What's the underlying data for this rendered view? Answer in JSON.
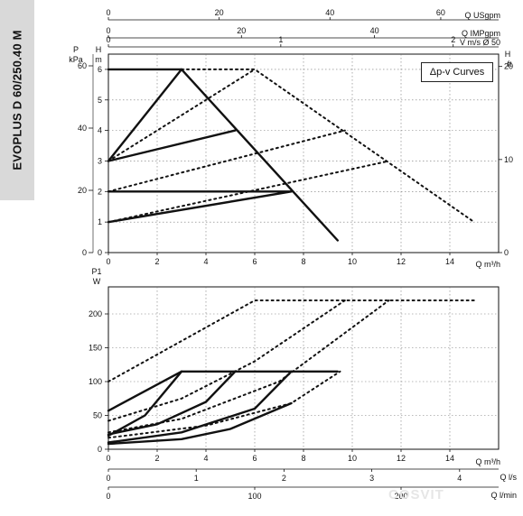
{
  "model": "EVOPLUS D 60/250.40 M",
  "legend": "Δp-v Curves",
  "watermark": "COSVIT",
  "chart_data": [
    {
      "type": "line",
      "name": "head",
      "xlim": [
        0,
        16
      ],
      "x_ticks": [
        0,
        2,
        4,
        6,
        8,
        10,
        12,
        14
      ],
      "x_unit": "Q m³/h",
      "ylim": [
        0,
        6.5
      ],
      "y_ticks": [
        0,
        1,
        2,
        3,
        4,
        5,
        6
      ],
      "y_unit": "m",
      "y_name": "H",
      "kpa_ticks": [
        0,
        20,
        40,
        60
      ],
      "kpa_unit": "kPa",
      "kpa_name": "P",
      "ft_ticks": [
        0,
        10,
        20
      ],
      "ft_unit": "ft",
      "ft_name": "H",
      "top_axes": [
        {
          "unit": "Q USgpm",
          "ticks": [
            0,
            20,
            40,
            60
          ],
          "per_m3h": 4.4029
        },
        {
          "unit": "Q IMPgpm",
          "ticks": [
            0,
            20,
            40
          ],
          "per_m3h": 3.6662
        },
        {
          "unit": "V m/s Ø 50",
          "ticks": [
            0,
            1,
            2
          ],
          "per_m3h": 0.14147
        }
      ],
      "series": [
        {
          "style": "solid",
          "points": [
            [
              0,
              6
            ],
            [
              3,
              6
            ],
            [
              9.4,
              0.4
            ]
          ]
        },
        {
          "style": "solid",
          "points": [
            [
              0,
              3
            ],
            [
              3,
              6
            ]
          ]
        },
        {
          "style": "solid",
          "points": [
            [
              0,
              3
            ],
            [
              5.2,
              4
            ]
          ]
        },
        {
          "style": "solid",
          "points": [
            [
              0,
              2
            ],
            [
              7.5,
              2
            ]
          ]
        },
        {
          "style": "solid",
          "points": [
            [
              0,
              1
            ],
            [
              7.5,
              2
            ]
          ]
        },
        {
          "style": "dotted",
          "points": [
            [
              3,
              6
            ],
            [
              6,
              6
            ],
            [
              15,
              1
            ]
          ]
        },
        {
          "style": "dotted",
          "points": [
            [
              0,
              3
            ],
            [
              6,
              6
            ]
          ]
        },
        {
          "style": "dotted",
          "points": [
            [
              0,
              2
            ],
            [
              9.7,
              4
            ]
          ]
        },
        {
          "style": "dotted",
          "points": [
            [
              0,
              1
            ],
            [
              11.5,
              3
            ]
          ]
        }
      ]
    },
    {
      "type": "line",
      "name": "power",
      "xlim": [
        0,
        16
      ],
      "x_ticks": [
        0,
        2,
        4,
        6,
        8,
        10,
        12,
        14
      ],
      "x_unit": "Q m³/h",
      "ylim": [
        0,
        240
      ],
      "y_ticks": [
        0,
        50,
        100,
        150,
        200
      ],
      "y_unit": "W",
      "y_name": "P1",
      "bottom_axes": [
        {
          "unit": "Q l/s",
          "ticks": [
            0,
            1,
            2,
            3,
            4
          ],
          "per_m3h": 0.27778
        },
        {
          "unit": "Q l/min",
          "ticks": [
            0,
            100,
            200
          ],
          "per_m3h": 16.667
        }
      ],
      "series": [
        {
          "style": "solid",
          "points": [
            [
              0,
              57
            ],
            [
              3,
              115
            ],
            [
              9.4,
              115
            ]
          ]
        },
        {
          "style": "solid",
          "points": [
            [
              0,
              20
            ],
            [
              1.5,
              50
            ],
            [
              3,
              115
            ]
          ]
        },
        {
          "style": "solid",
          "points": [
            [
              0,
              22
            ],
            [
              2,
              37
            ],
            [
              4,
              70
            ],
            [
              5.2,
              115
            ]
          ]
        },
        {
          "style": "solid",
          "points": [
            [
              0,
              10
            ],
            [
              3,
              25
            ],
            [
              6,
              60
            ],
            [
              7.5,
              115
            ]
          ]
        },
        {
          "style": "solid",
          "points": [
            [
              0,
              8
            ],
            [
              3,
              15
            ],
            [
              5,
              30
            ],
            [
              7.5,
              68
            ]
          ]
        },
        {
          "style": "dotted",
          "points": [
            [
              0,
              100
            ],
            [
              6,
              220
            ],
            [
              15,
              220
            ]
          ]
        },
        {
          "style": "dotted",
          "points": [
            [
              0,
              42
            ],
            [
              3,
              75
            ],
            [
              6,
              130
            ],
            [
              9.7,
              220
            ]
          ]
        },
        {
          "style": "dotted",
          "points": [
            [
              0,
              25
            ],
            [
              3,
              45
            ],
            [
              7,
              100
            ],
            [
              11.5,
              220
            ]
          ]
        },
        {
          "style": "dotted",
          "points": [
            [
              0,
              17
            ],
            [
              4,
              35
            ],
            [
              7.5,
              68
            ],
            [
              9.5,
              115
            ]
          ]
        }
      ]
    }
  ]
}
